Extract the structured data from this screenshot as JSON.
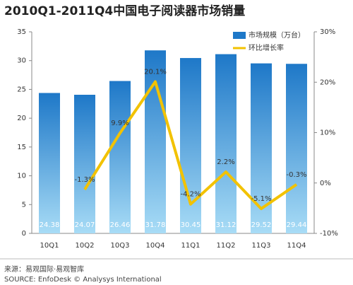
{
  "chart_data": {
    "type": "bar-line",
    "title": "2010Q1-2011Q4中国电子阅读器市场销量",
    "categories": [
      "10Q1",
      "10Q2",
      "10Q3",
      "10Q4",
      "11Q1",
      "11Q2",
      "11Q3",
      "11Q4"
    ],
    "series": [
      {
        "name": "市场规模（万台）",
        "type": "bar",
        "color": "#1e78c8",
        "values": [
          24.38,
          24.07,
          26.46,
          31.78,
          30.45,
          31.12,
          29.52,
          29.44
        ]
      },
      {
        "name": "环比增长率",
        "type": "line",
        "axis": "y2",
        "color": "#f2c200",
        "values": [
          null,
          -1.3,
          9.9,
          20.1,
          -4.2,
          2.2,
          -5.1,
          -0.3
        ],
        "value_labels": [
          null,
          "-1.3%",
          "9.9%",
          "20.1%",
          "-4.2%",
          "2.2%",
          "-5.1%",
          "-0.3%"
        ]
      }
    ],
    "ylim": [
      0,
      35
    ],
    "yticks": [
      0,
      5,
      10,
      15,
      20,
      25,
      30,
      35
    ],
    "y2lim": [
      -10,
      30
    ],
    "y2ticks": [
      {
        "value": -10,
        "label": "-10%"
      },
      {
        "value": 0,
        "label": "0%"
      },
      {
        "value": 10,
        "label": "10%"
      },
      {
        "value": 20,
        "label": "20%"
      },
      {
        "value": 30,
        "label": "30%"
      }
    ],
    "grid": false,
    "legend": "top-right",
    "source": [
      "来源：易观国际·易观智库",
      "SOURCE: EnfoDesk © Analysys International"
    ]
  }
}
